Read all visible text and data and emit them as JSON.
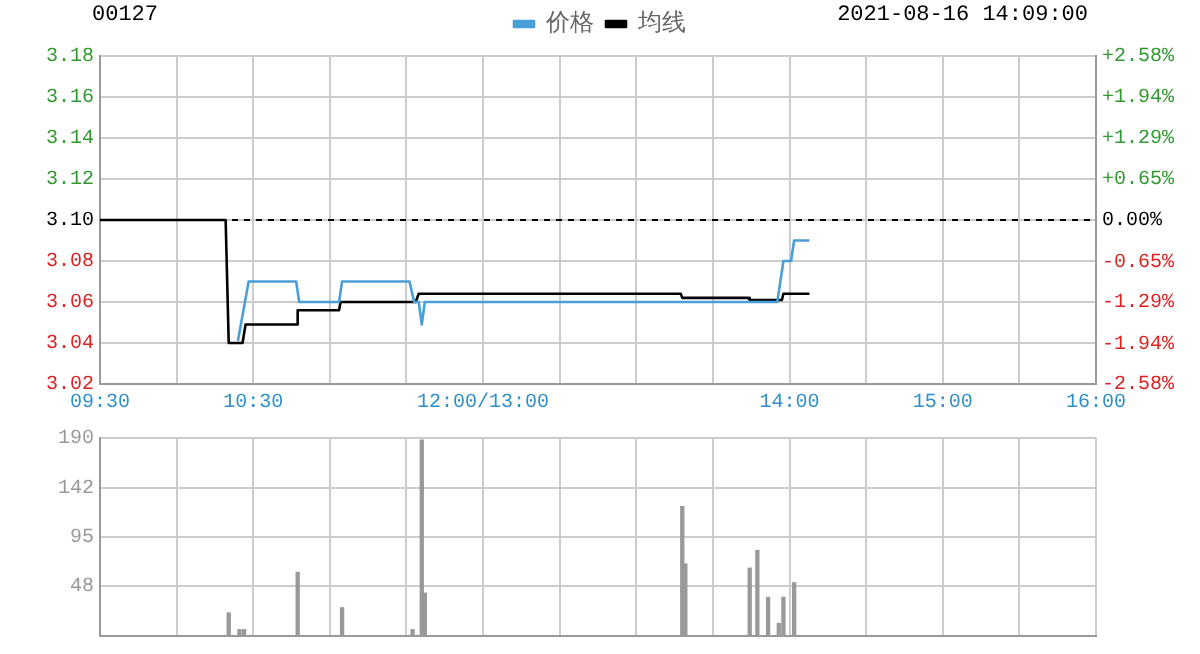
{
  "chart_data": [
    {
      "type": "line",
      "title": "00127",
      "subtitle": "2021-08-16 14:09:00",
      "legend": "top",
      "grid": true,
      "marker": "none",
      "line_style": "solid",
      "series": [
        {
          "name": "价格",
          "color": "#4a9fd8",
          "x": [
            10.4,
            10.47,
            10.78,
            10.8,
            11.06,
            11.08,
            11.52,
            11.55,
            11.58,
            11.6,
            11.62,
            13.92,
            13.96,
            14.01,
            14.03,
            14.13
          ],
          "values": [
            3.041,
            3.07,
            3.07,
            3.06,
            3.06,
            3.07,
            3.07,
            3.06,
            3.06,
            3.049,
            3.06,
            3.06,
            3.08,
            3.08,
            3.09,
            3.09
          ]
        },
        {
          "name": "均线",
          "color": "#000000",
          "x": [
            9.5,
            10.32,
            10.34,
            10.43,
            10.45,
            10.78,
            10.79,
            11.06,
            11.07,
            11.56,
            11.58,
            13.29,
            13.3,
            13.73,
            13.74,
            13.95,
            13.96,
            14.13
          ],
          "values": [
            3.1,
            3.1,
            3.04,
            3.04,
            3.049,
            3.049,
            3.056,
            3.056,
            3.06,
            3.06,
            3.064,
            3.064,
            3.062,
            3.062,
            3.061,
            3.061,
            3.064,
            3.064
          ]
        }
      ],
      "xlim": [
        9.5,
        16
      ],
      "xticks": [
        {
          "value": 9.5,
          "label": "09:30"
        },
        {
          "value": 10,
          "label": null
        },
        {
          "value": 10.5,
          "label": "10:30"
        },
        {
          "value": 11,
          "label": null
        },
        {
          "value": 11.5,
          "label": null
        },
        {
          "value": 12,
          "label": "12:00/13:00"
        },
        {
          "value": 12.5,
          "label": null
        },
        {
          "value": 13,
          "label": null
        },
        {
          "value": 13.5,
          "label": null
        },
        {
          "value": 14,
          "label": "14:00"
        },
        {
          "value": 14.5,
          "label": null
        },
        {
          "value": 15,
          "label": "15:00"
        },
        {
          "value": 15.5,
          "label": null
        },
        {
          "value": 16,
          "label": "16:00"
        }
      ],
      "ylim": [
        3.02,
        3.18
      ],
      "yticks": [
        {
          "value": 3.02,
          "label": "3.02"
        },
        {
          "value": 3.04,
          "label": "3.04"
        },
        {
          "value": 3.06,
          "label": "3.06"
        },
        {
          "value": 3.08,
          "label": "3.08"
        },
        {
          "value": 3.1,
          "label": "3.10"
        },
        {
          "value": 3.12,
          "label": "3.12"
        },
        {
          "value": 3.14,
          "label": "3.14"
        },
        {
          "value": 3.16,
          "label": "3.16"
        },
        {
          "value": 3.18,
          "label": "3.18"
        }
      ],
      "y2lim": [
        -2.58,
        2.58
      ],
      "y2ticks": [
        {
          "value": -2.58,
          "label": "-2.58%"
        },
        {
          "value": -1.94,
          "label": "-1.94%"
        },
        {
          "value": -1.29,
          "label": "-1.29%"
        },
        {
          "value": -0.65,
          "label": "-0.65%"
        },
        {
          "value": 0,
          "label": "0.00%"
        },
        {
          "value": 0.65,
          "label": "+0.65%"
        },
        {
          "value": 1.29,
          "label": "+1.29%"
        },
        {
          "value": 1.94,
          "label": "+1.94%"
        },
        {
          "value": 2.58,
          "label": "+2.58%"
        }
      ],
      "ref_lines": [
        {
          "axis": "y",
          "value": 3.1,
          "color": "#000000",
          "line_style": "dashed"
        }
      ]
    },
    {
      "type": "bar",
      "color": "#999999",
      "grid": true,
      "tick_labels": "y",
      "x": [
        10.34,
        10.41,
        10.44,
        10.79,
        11.08,
        11.54,
        11.6,
        11.62,
        13.3,
        13.32,
        13.74,
        13.79,
        13.86,
        13.93,
        13.96,
        14.03
      ],
      "values": [
        22,
        6,
        6,
        61,
        27,
        6,
        188,
        41,
        124,
        69,
        65,
        82,
        37,
        12,
        37,
        51
      ],
      "xlim": [
        9.5,
        16
      ],
      "xticks": [
        9.5,
        10,
        10.5,
        11,
        11.5,
        12,
        12.5,
        13,
        13.5,
        14,
        14.5,
        15,
        15.5,
        16
      ],
      "ylim": [
        0,
        190
      ],
      "yticks": [
        48,
        95,
        142,
        190
      ]
    }
  ]
}
